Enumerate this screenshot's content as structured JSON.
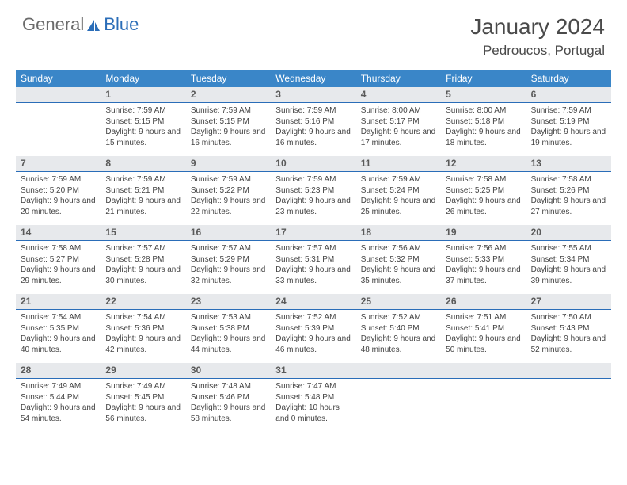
{
  "brand": {
    "part1": "General",
    "part2": "Blue"
  },
  "title": "January 2024",
  "location": "Pedroucos, Portugal",
  "colors": {
    "header_bg": "#3a86c8",
    "band_bg": "#e7e9ec",
    "band_border": "#2a6db8",
    "text": "#444444",
    "title_text": "#4a4a4a"
  },
  "daysOfWeek": [
    "Sunday",
    "Monday",
    "Tuesday",
    "Wednesday",
    "Thursday",
    "Friday",
    "Saturday"
  ],
  "weeks": [
    {
      "nums": [
        "",
        "1",
        "2",
        "3",
        "4",
        "5",
        "6"
      ],
      "cells": [
        {},
        {
          "sunrise": "7:59 AM",
          "sunset": "5:15 PM",
          "daylight": "9 hours and 15 minutes."
        },
        {
          "sunrise": "7:59 AM",
          "sunset": "5:15 PM",
          "daylight": "9 hours and 16 minutes."
        },
        {
          "sunrise": "7:59 AM",
          "sunset": "5:16 PM",
          "daylight": "9 hours and 16 minutes."
        },
        {
          "sunrise": "8:00 AM",
          "sunset": "5:17 PM",
          "daylight": "9 hours and 17 minutes."
        },
        {
          "sunrise": "8:00 AM",
          "sunset": "5:18 PM",
          "daylight": "9 hours and 18 minutes."
        },
        {
          "sunrise": "7:59 AM",
          "sunset": "5:19 PM",
          "daylight": "9 hours and 19 minutes."
        }
      ]
    },
    {
      "nums": [
        "7",
        "8",
        "9",
        "10",
        "11",
        "12",
        "13"
      ],
      "cells": [
        {
          "sunrise": "7:59 AM",
          "sunset": "5:20 PM",
          "daylight": "9 hours and 20 minutes."
        },
        {
          "sunrise": "7:59 AM",
          "sunset": "5:21 PM",
          "daylight": "9 hours and 21 minutes."
        },
        {
          "sunrise": "7:59 AM",
          "sunset": "5:22 PM",
          "daylight": "9 hours and 22 minutes."
        },
        {
          "sunrise": "7:59 AM",
          "sunset": "5:23 PM",
          "daylight": "9 hours and 23 minutes."
        },
        {
          "sunrise": "7:59 AM",
          "sunset": "5:24 PM",
          "daylight": "9 hours and 25 minutes."
        },
        {
          "sunrise": "7:58 AM",
          "sunset": "5:25 PM",
          "daylight": "9 hours and 26 minutes."
        },
        {
          "sunrise": "7:58 AM",
          "sunset": "5:26 PM",
          "daylight": "9 hours and 27 minutes."
        }
      ]
    },
    {
      "nums": [
        "14",
        "15",
        "16",
        "17",
        "18",
        "19",
        "20"
      ],
      "cells": [
        {
          "sunrise": "7:58 AM",
          "sunset": "5:27 PM",
          "daylight": "9 hours and 29 minutes."
        },
        {
          "sunrise": "7:57 AM",
          "sunset": "5:28 PM",
          "daylight": "9 hours and 30 minutes."
        },
        {
          "sunrise": "7:57 AM",
          "sunset": "5:29 PM",
          "daylight": "9 hours and 32 minutes."
        },
        {
          "sunrise": "7:57 AM",
          "sunset": "5:31 PM",
          "daylight": "9 hours and 33 minutes."
        },
        {
          "sunrise": "7:56 AM",
          "sunset": "5:32 PM",
          "daylight": "9 hours and 35 minutes."
        },
        {
          "sunrise": "7:56 AM",
          "sunset": "5:33 PM",
          "daylight": "9 hours and 37 minutes."
        },
        {
          "sunrise": "7:55 AM",
          "sunset": "5:34 PM",
          "daylight": "9 hours and 39 minutes."
        }
      ]
    },
    {
      "nums": [
        "21",
        "22",
        "23",
        "24",
        "25",
        "26",
        "27"
      ],
      "cells": [
        {
          "sunrise": "7:54 AM",
          "sunset": "5:35 PM",
          "daylight": "9 hours and 40 minutes."
        },
        {
          "sunrise": "7:54 AM",
          "sunset": "5:36 PM",
          "daylight": "9 hours and 42 minutes."
        },
        {
          "sunrise": "7:53 AM",
          "sunset": "5:38 PM",
          "daylight": "9 hours and 44 minutes."
        },
        {
          "sunrise": "7:52 AM",
          "sunset": "5:39 PM",
          "daylight": "9 hours and 46 minutes."
        },
        {
          "sunrise": "7:52 AM",
          "sunset": "5:40 PM",
          "daylight": "9 hours and 48 minutes."
        },
        {
          "sunrise": "7:51 AM",
          "sunset": "5:41 PM",
          "daylight": "9 hours and 50 minutes."
        },
        {
          "sunrise": "7:50 AM",
          "sunset": "5:43 PM",
          "daylight": "9 hours and 52 minutes."
        }
      ]
    },
    {
      "nums": [
        "28",
        "29",
        "30",
        "31",
        "",
        "",
        ""
      ],
      "cells": [
        {
          "sunrise": "7:49 AM",
          "sunset": "5:44 PM",
          "daylight": "9 hours and 54 minutes."
        },
        {
          "sunrise": "7:49 AM",
          "sunset": "5:45 PM",
          "daylight": "9 hours and 56 minutes."
        },
        {
          "sunrise": "7:48 AM",
          "sunset": "5:46 PM",
          "daylight": "9 hours and 58 minutes."
        },
        {
          "sunrise": "7:47 AM",
          "sunset": "5:48 PM",
          "daylight": "10 hours and 0 minutes."
        },
        {},
        {},
        {}
      ]
    }
  ],
  "labels": {
    "sunrise": "Sunrise:",
    "sunset": "Sunset:",
    "daylight": "Daylight:"
  }
}
